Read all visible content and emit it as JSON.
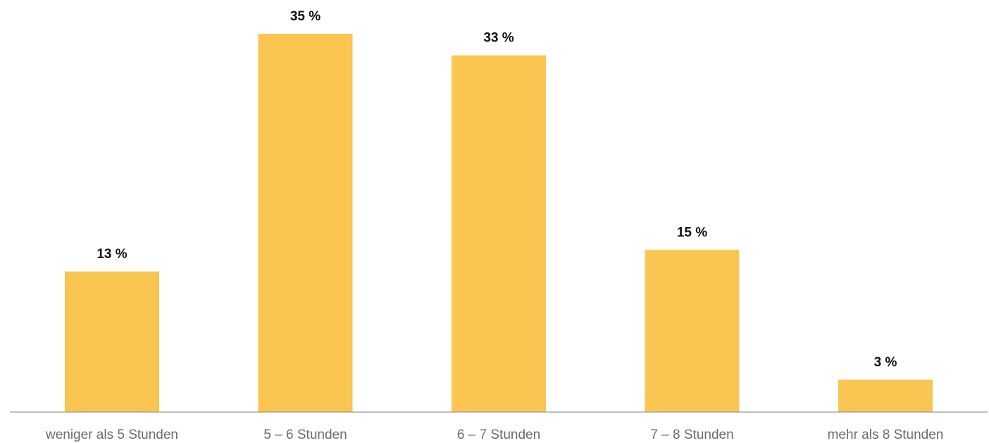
{
  "chart_data": {
    "type": "bar",
    "categories": [
      "weniger als 5 Stunden",
      "5 – 6 Stunden",
      "6 – 7 Stunden",
      "7 – 8 Stunden",
      "mehr als 8 Stunden"
    ],
    "values": [
      13,
      35,
      33,
      15,
      3
    ],
    "data_labels": [
      "13 %",
      "35 %",
      "33 %",
      "15 %",
      "3 %"
    ],
    "title": "",
    "xlabel": "",
    "ylabel": "",
    "ylim": [
      0,
      35
    ],
    "grid": false,
    "legend": "none",
    "colors": {
      "bar": "#fbc552",
      "axis": "#9a9a9a",
      "data_label": "#111111",
      "category_label": "#6b6b6b"
    }
  }
}
